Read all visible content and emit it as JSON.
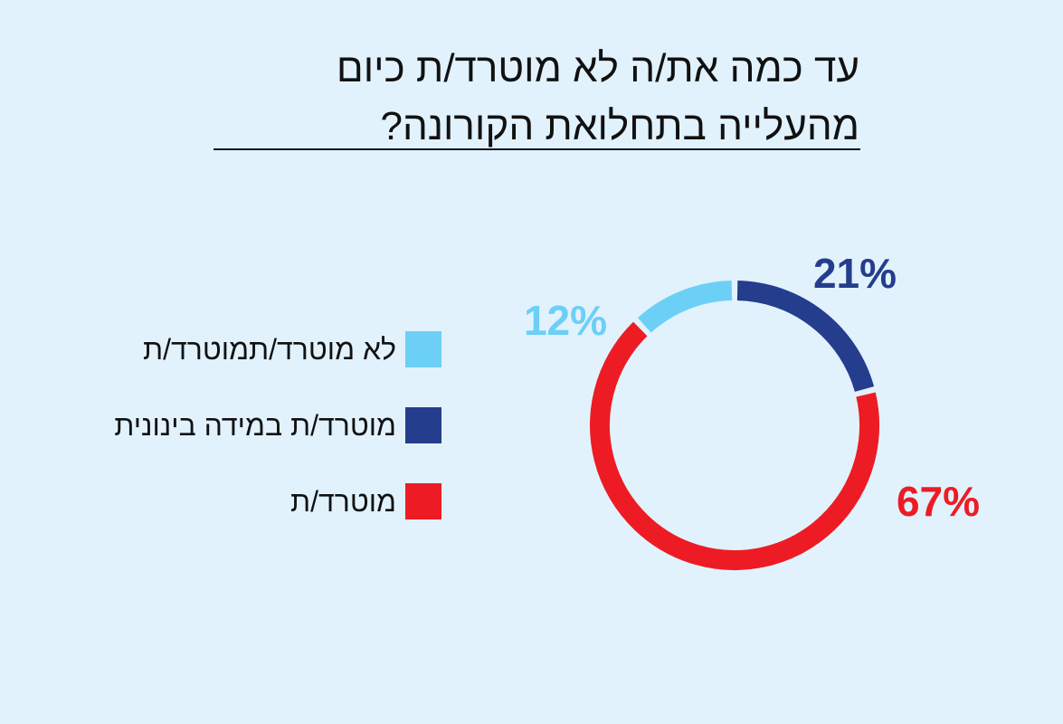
{
  "title": {
    "line1": "עד כמה את/ה לא מוטרד/ת כיום",
    "line2": "מהעלייה בתחלואת הקורונה?"
  },
  "chart_data": {
    "type": "pie",
    "title": "עד כמה את/ה לא מוטרד/ת כיום מהעלייה בתחלואת הקורונה?",
    "legend_position": "left",
    "series": [
      {
        "name": "לא מוטרד/תמוטרד/ת",
        "value": 12,
        "label": "12%",
        "color": "#6ccff6"
      },
      {
        "name": "מוטרד/ת במידה בינונית",
        "value": 21,
        "label": "21%",
        "color": "#253d8d"
      },
      {
        "name": "מוטרד/ת",
        "value": 67,
        "label": "67%",
        "color": "#ed1c24"
      }
    ]
  }
}
